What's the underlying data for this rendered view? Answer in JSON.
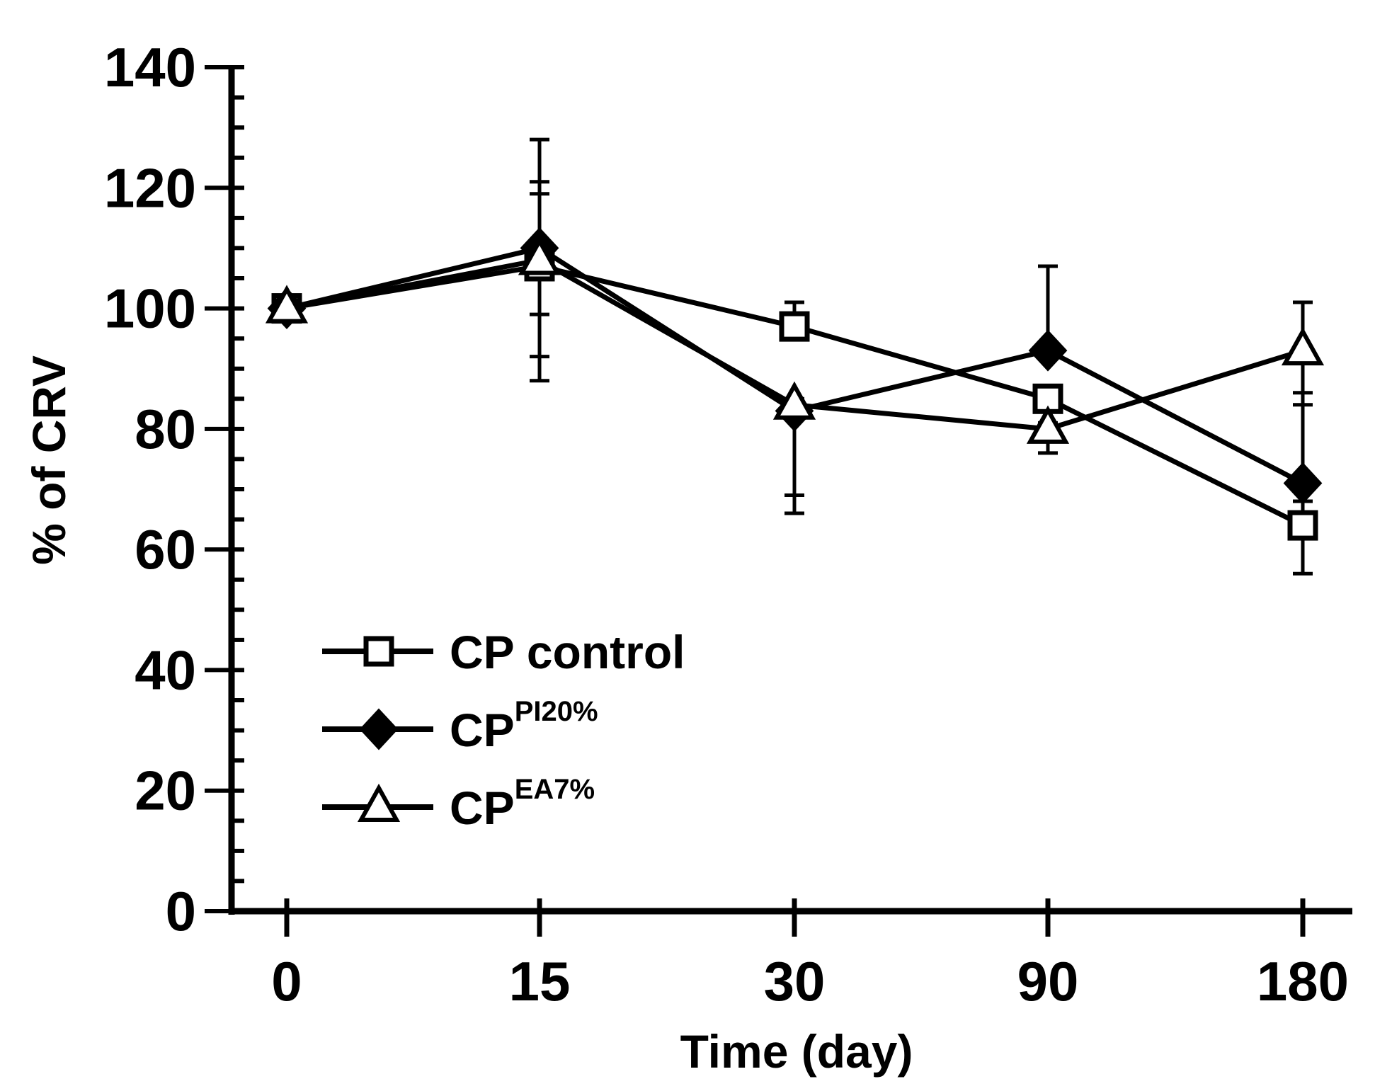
{
  "chart_data": {
    "type": "line",
    "title": "",
    "xlabel": "Time (day)",
    "ylabel": "% of CRV",
    "x_categories": [
      "0",
      "15",
      "30",
      "90",
      "180"
    ],
    "ylim": [
      0,
      140
    ],
    "y_ticks": [
      "0",
      "20",
      "40",
      "60",
      "80",
      "100",
      "120",
      "140"
    ],
    "y_minor_step": 5,
    "grid": false,
    "legend": {
      "position": "lower-left"
    },
    "series": [
      {
        "name": "CP control",
        "name_main": "CP control",
        "name_sup": "",
        "marker": "open-square",
        "values": [
          100,
          107,
          97,
          85,
          64
        ],
        "err_upper": [
          100,
          121,
          101,
          86,
          68
        ],
        "err_lower": [
          100,
          92,
          96,
          84,
          56
        ]
      },
      {
        "name": "CPPI20%",
        "name_main": "CP",
        "name_sup": "PI20%",
        "marker": "filled-diamond",
        "values": [
          100,
          110,
          83,
          93,
          71
        ],
        "err_upper": [
          100,
          128,
          84,
          107,
          86
        ],
        "err_lower": [
          100,
          88,
          66,
          92,
          68
        ]
      },
      {
        "name": "CPEA7%",
        "name_main": "CP",
        "name_sup": "EA7%",
        "marker": "open-triangle",
        "values": [
          100,
          108,
          84,
          80,
          93
        ],
        "err_upper": [
          100,
          119,
          85,
          81,
          101
        ],
        "err_lower": [
          100,
          99,
          69,
          76,
          84
        ]
      }
    ]
  }
}
